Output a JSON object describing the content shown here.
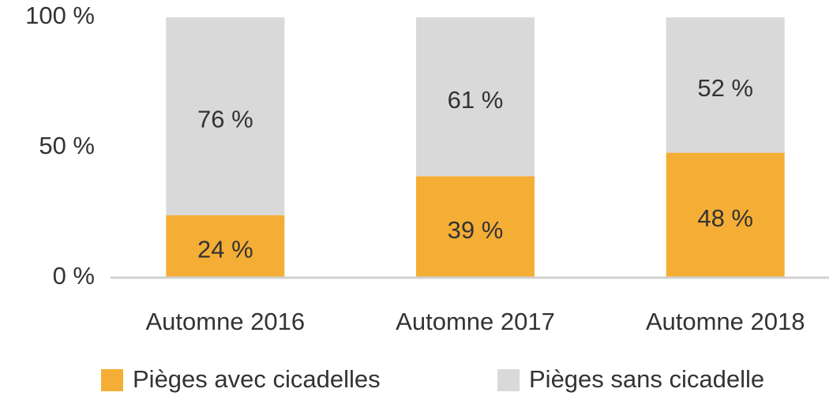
{
  "chart_data": {
    "type": "stacked_bar",
    "categories": [
      "Automne 2016",
      "Automne 2017",
      "Automne 2018"
    ],
    "series": [
      {
        "name": "Pièges avec cicadelles",
        "color": "#f5ae35",
        "values": [
          24,
          39,
          48
        ],
        "value_labels": [
          "24 %",
          "39 %",
          "48 %"
        ]
      },
      {
        "name": "Pièges sans cicadelle",
        "color": "#d9d9d9",
        "values": [
          76,
          61,
          52
        ],
        "value_labels": [
          "76 %",
          "61 %",
          "52 %"
        ]
      }
    ],
    "ylim": [
      0,
      100
    ],
    "yticks": [
      {
        "value": 0,
        "label": "0 %"
      },
      {
        "value": 50,
        "label": "50 %"
      },
      {
        "value": 100,
        "label": "100 %"
      }
    ],
    "grid": false,
    "legend": "bottom"
  }
}
